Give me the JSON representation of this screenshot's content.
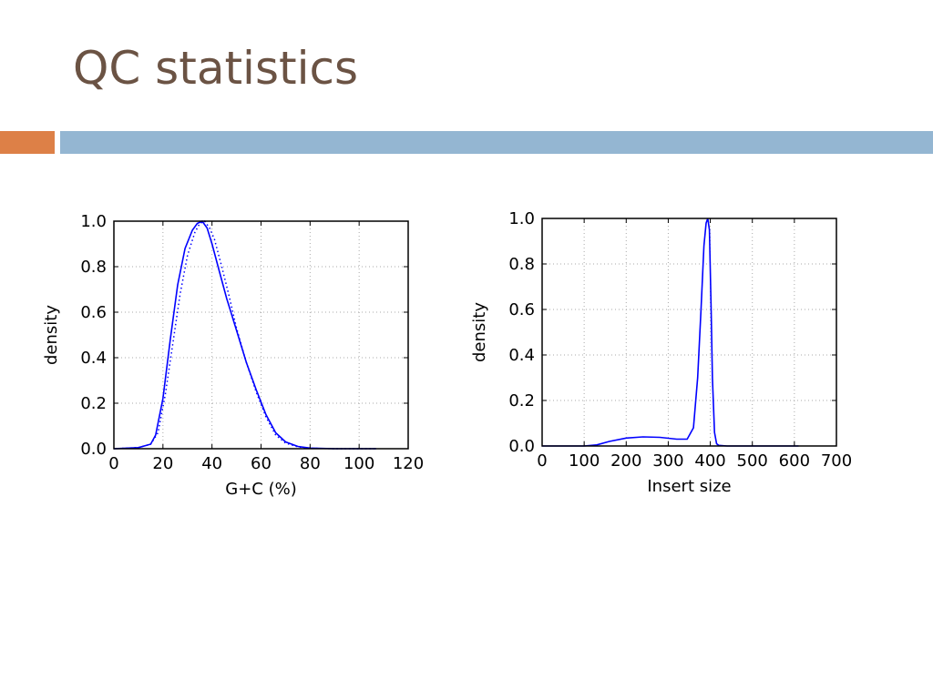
{
  "slide": {
    "title": "QC statistics"
  },
  "colors": {
    "title": "#6b5344",
    "accent_orange": "#dd8047",
    "accent_blue": "#94b6d2",
    "series": "#0000ff",
    "grid": "#aaaaaa"
  },
  "chart_data": [
    {
      "type": "line",
      "title": "",
      "xlabel": "G+C (%)",
      "ylabel": "density",
      "xlim": [
        0,
        120
      ],
      "ylim": [
        0,
        1
      ],
      "xticks": [
        0,
        20,
        40,
        60,
        80,
        100,
        120
      ],
      "xtick_labels": [
        "0",
        "20",
        "40",
        "60",
        "80",
        "100",
        "120"
      ],
      "yticks": [
        0,
        0.2,
        0.4,
        0.6,
        0.8,
        1.0
      ],
      "ytick_labels": [
        "0.0",
        "0.2",
        "0.4",
        "0.6",
        "0.8",
        "1.0"
      ],
      "grid": true,
      "series": [
        {
          "style": "solid",
          "x": [
            0,
            10,
            15,
            17,
            20,
            23,
            26,
            29,
            32,
            34,
            36,
            38,
            40,
            43,
            46,
            50,
            54,
            58,
            62,
            66,
            70,
            75,
            80,
            90,
            100,
            107
          ],
          "y": [
            0,
            0.005,
            0.02,
            0.06,
            0.22,
            0.48,
            0.72,
            0.88,
            0.96,
            0.99,
            1.0,
            0.97,
            0.9,
            0.78,
            0.66,
            0.52,
            0.38,
            0.26,
            0.15,
            0.07,
            0.03,
            0.01,
            0.003,
            0.0,
            0.0,
            0.0
          ]
        },
        {
          "style": "dotted",
          "x": [
            0,
            10,
            15,
            18,
            21,
            24,
            27,
            30,
            33,
            35,
            37,
            39,
            41,
            44,
            47,
            50,
            54,
            58,
            62,
            66,
            70,
            75,
            80,
            90,
            100,
            107
          ],
          "y": [
            0,
            0.005,
            0.02,
            0.07,
            0.24,
            0.46,
            0.68,
            0.85,
            0.95,
            0.99,
            1.0,
            0.97,
            0.92,
            0.8,
            0.67,
            0.53,
            0.38,
            0.25,
            0.14,
            0.06,
            0.025,
            0.008,
            0.002,
            0.0,
            0.0,
            0.0
          ]
        }
      ]
    },
    {
      "type": "line",
      "title": "",
      "xlabel": "Insert size",
      "ylabel": "density",
      "xlim": [
        0,
        700
      ],
      "ylim": [
        0,
        1
      ],
      "xticks": [
        0,
        100,
        200,
        300,
        400,
        500,
        600,
        700
      ],
      "xtick_labels": [
        "0",
        "100",
        "200",
        "300",
        "400",
        "500",
        "600",
        "700"
      ],
      "yticks": [
        0,
        0.2,
        0.4,
        0.6,
        0.8,
        1.0
      ],
      "ytick_labels": [
        "0.0",
        "0.2",
        "0.4",
        "0.6",
        "0.8",
        "1.0"
      ],
      "grid": true,
      "series": [
        {
          "style": "solid",
          "x": [
            0,
            100,
            130,
            160,
            200,
            240,
            280,
            320,
            345,
            360,
            370,
            378,
            385,
            390,
            394,
            398,
            402,
            405,
            410,
            415,
            420,
            440,
            500,
            600,
            610
          ],
          "y": [
            0,
            0.0,
            0.005,
            0.02,
            0.035,
            0.04,
            0.038,
            0.03,
            0.03,
            0.08,
            0.3,
            0.6,
            0.88,
            0.98,
            1.0,
            0.95,
            0.6,
            0.3,
            0.06,
            0.01,
            0.003,
            0.0,
            0.0,
            0.0,
            0.0
          ]
        }
      ]
    }
  ]
}
